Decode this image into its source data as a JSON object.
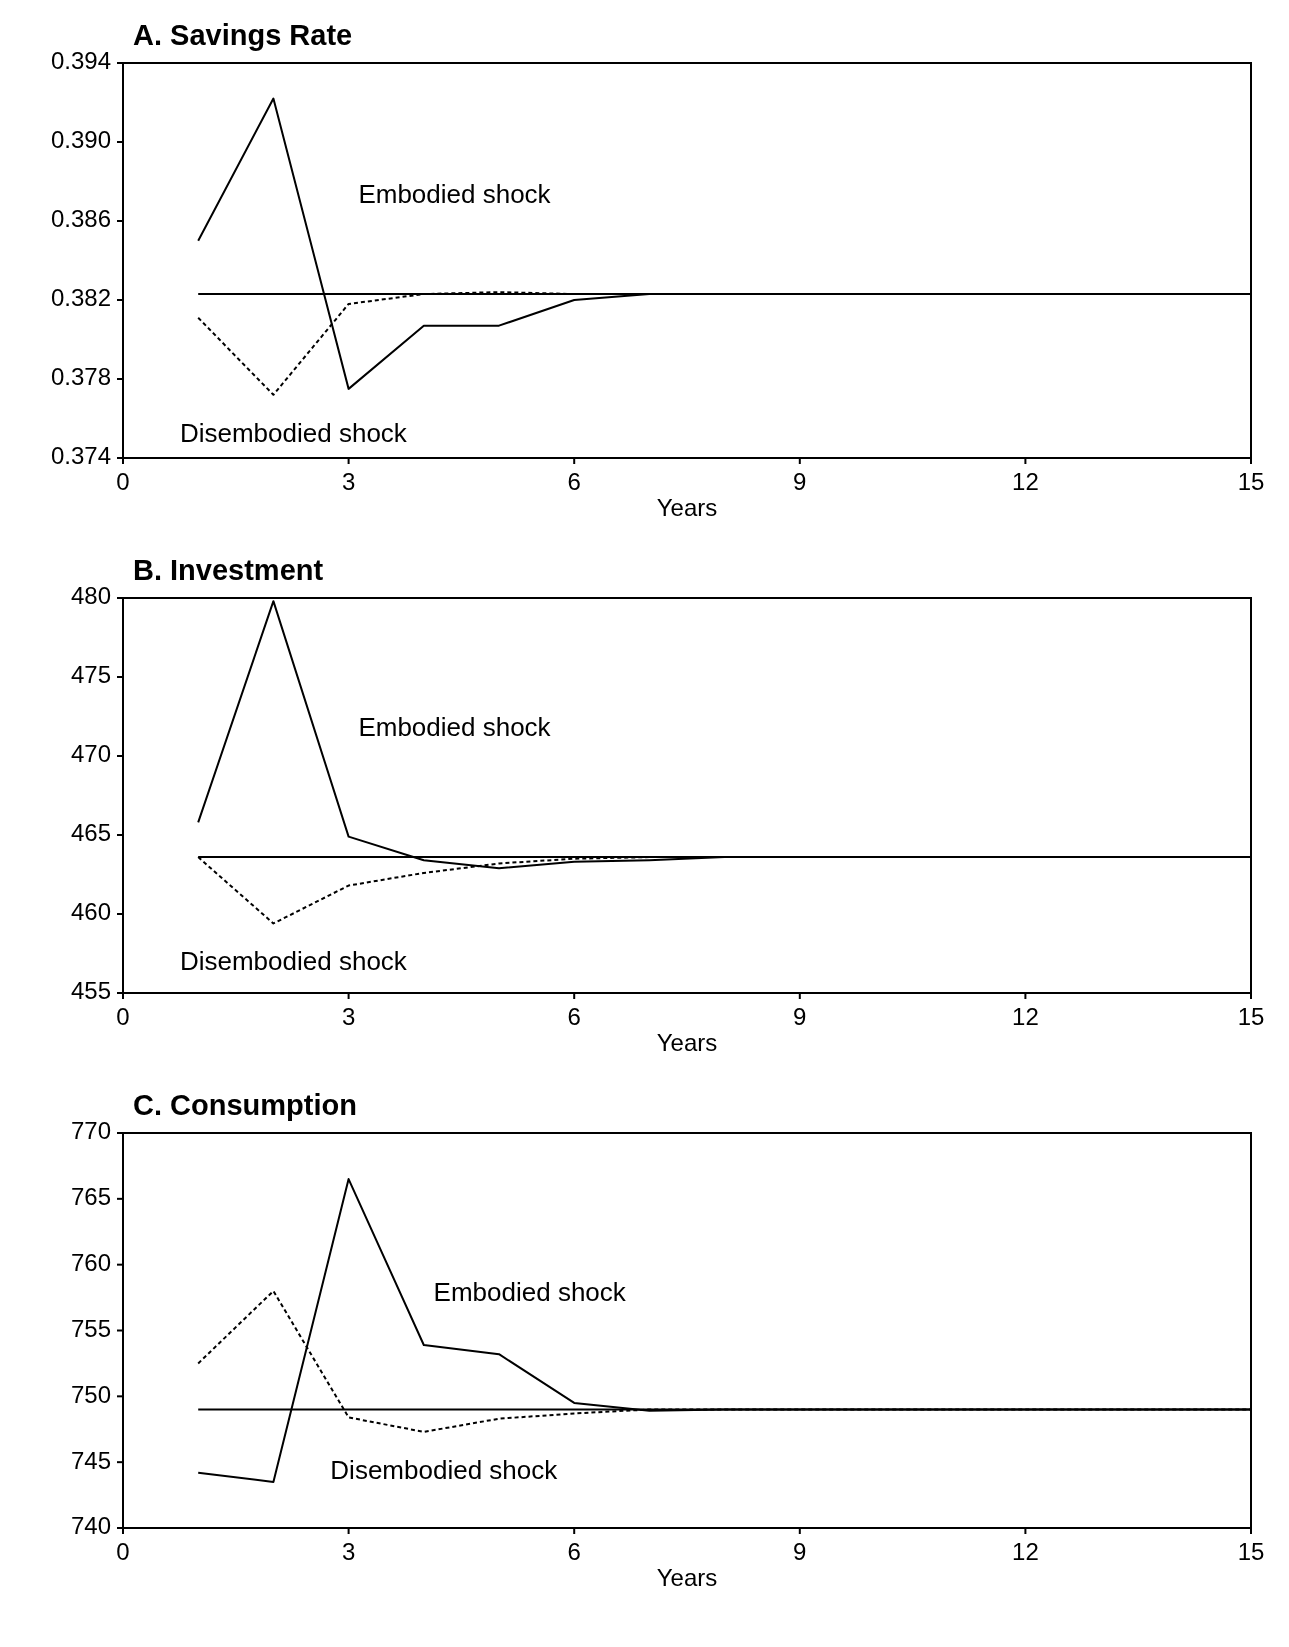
{
  "chart_data": [
    {
      "type": "line",
      "title": "A. Savings Rate",
      "xlabel": "Years",
      "xlim": [
        0,
        15
      ],
      "xticks": [
        0,
        3,
        6,
        9,
        12,
        15
      ],
      "ylim": [
        0.374,
        0.394
      ],
      "yticks": [
        {
          "value": 0.374,
          "label": "0.374"
        },
        {
          "value": 0.378,
          "label": "0.378"
        },
        {
          "value": 0.382,
          "label": "0.382"
        },
        {
          "value": 0.386,
          "label": "0.386"
        },
        {
          "value": 0.39,
          "label": "0.390"
        },
        {
          "value": 0.394,
          "label": "0.394"
        }
      ],
      "x": [
        1,
        2,
        3,
        4,
        5,
        6,
        7,
        8,
        9,
        10,
        11,
        12,
        13,
        14,
        15
      ],
      "grid": false,
      "series": [
        {
          "color": "#000000",
          "line_style": "solid",
          "values": [
            0.3823,
            0.3823,
            0.3823,
            0.3823,
            0.3823,
            0.3823,
            0.3823,
            0.3823,
            0.3823,
            0.3823,
            0.3823,
            0.3823,
            0.3823,
            0.3823,
            0.3823
          ]
        },
        {
          "name": "Embodied shock",
          "color": "#000000",
          "line_style": "solid",
          "values": [
            0.385,
            0.3922,
            0.3775,
            0.3807,
            0.3807,
            0.382,
            0.3823,
            0.3823,
            0.3823,
            0.3823,
            0.3823,
            0.3823,
            0.3823,
            0.3823,
            0.3823
          ]
        },
        {
          "name": "Disembodied shock",
          "color": "#000000",
          "line_style": "dashed",
          "values": [
            0.3811,
            0.3772,
            0.3818,
            0.3823,
            0.3824,
            0.3823,
            0.3823,
            0.3823,
            0.3823,
            0.3823,
            0.3823,
            0.3823,
            0.3823,
            0.3823,
            0.3823
          ]
        }
      ],
      "legend": false
    },
    {
      "type": "line",
      "title": "B. Investment",
      "xlabel": "Years",
      "xlim": [
        0,
        15
      ],
      "xticks": [
        0,
        3,
        6,
        9,
        12,
        15
      ],
      "ylim": [
        455,
        480
      ],
      "yticks": [
        455,
        460,
        465,
        470,
        475,
        480
      ],
      "x": [
        1,
        2,
        3,
        4,
        5,
        6,
        7,
        8,
        9,
        10,
        11,
        12,
        13,
        14,
        15
      ],
      "grid": false,
      "series": [
        {
          "color": "#000000",
          "line_style": "solid",
          "values": [
            463.6,
            463.6,
            463.6,
            463.6,
            463.6,
            463.6,
            463.6,
            463.6,
            463.6,
            463.6,
            463.6,
            463.6,
            463.6,
            463.6,
            463.6
          ]
        },
        {
          "name": "Embodied shock",
          "color": "#000000",
          "line_style": "solid",
          "values": [
            465.8,
            479.8,
            464.9,
            463.4,
            462.9,
            463.3,
            463.4,
            463.6,
            463.6,
            463.6,
            463.6,
            463.6,
            463.6,
            463.6,
            463.6
          ]
        },
        {
          "name": "Disembodied shock",
          "color": "#000000",
          "line_style": "dashed",
          "values": [
            463.6,
            459.4,
            461.8,
            462.6,
            463.2,
            463.5,
            463.6,
            463.6,
            463.6,
            463.6,
            463.6,
            463.6,
            463.6,
            463.6,
            463.6
          ]
        }
      ],
      "legend": false
    },
    {
      "type": "line",
      "title": "C. Consumption",
      "xlabel": "Years",
      "xlim": [
        0,
        15
      ],
      "xticks": [
        0,
        3,
        6,
        9,
        12,
        15
      ],
      "ylim": [
        740,
        770
      ],
      "yticks": [
        740,
        745,
        750,
        755,
        760,
        765,
        770
      ],
      "x": [
        1,
        2,
        3,
        4,
        5,
        6,
        7,
        8,
        9,
        10,
        11,
        12,
        13,
        14,
        15
      ],
      "grid": false,
      "series": [
        {
          "color": "#000000",
          "line_style": "solid",
          "values": [
            749,
            749,
            749,
            749,
            749,
            749,
            749,
            749,
            749,
            749,
            749,
            749,
            749,
            749,
            749
          ]
        },
        {
          "name": "Embodied shock",
          "color": "#000000",
          "line_style": "solid",
          "values": [
            744.2,
            743.5,
            766.5,
            753.9,
            753.2,
            749.5,
            748.9,
            749,
            749,
            749,
            749,
            749,
            749,
            749,
            749
          ]
        },
        {
          "name": "Disembodied shock",
          "color": "#000000",
          "line_style": "dashed",
          "values": [
            752.5,
            758,
            748.4,
            747.3,
            748.3,
            748.7,
            749,
            749,
            749,
            749,
            749,
            749,
            749,
            749,
            749
          ]
        }
      ],
      "legend": false
    }
  ]
}
